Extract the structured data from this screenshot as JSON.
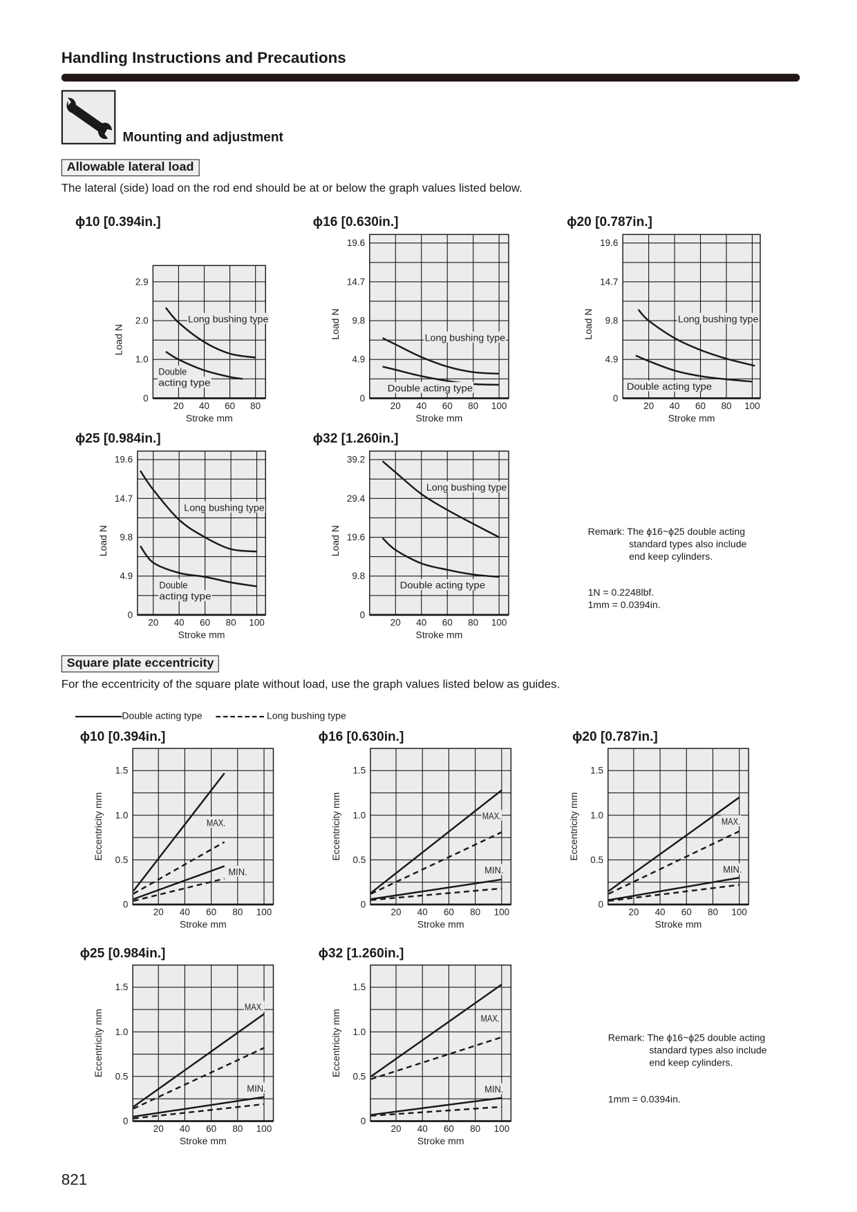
{
  "header": {
    "title": "Handling Instructions and Precautions"
  },
  "section": {
    "icon": "wrench-icon",
    "title": "Mounting and adjustment"
  },
  "lateral": {
    "heading": "Allowable lateral load",
    "description": "The lateral (side) load on the rod end should be at or below the graph values listed below.",
    "remark": [
      "Remark: The ϕ16~ϕ25 double acting",
      "standard types also include",
      "end keep cylinders."
    ],
    "conversions": [
      "1N = 0.2248lbf.",
      "1mm = 0.0394in."
    ]
  },
  "eccentricity": {
    "heading": "Square plate eccentricity",
    "description": "For the eccentricity of the square plate without load, use the graph values listed below as guides.",
    "legend": [
      {
        "label": "Double acting type",
        "style": "solid"
      },
      {
        "label": "Long bushing type",
        "style": "dashed"
      }
    ],
    "remark": [
      "Remark: The ϕ16~ϕ25 double acting",
      "standard types also include",
      "end keep cylinders."
    ],
    "conversions": [
      "1mm = 0.0394in."
    ]
  },
  "page_number": "821",
  "colors": {
    "plot_background": "#ececec",
    "line": "#1a1a1a",
    "header_bar": "#231815"
  },
  "chart_data": [
    {
      "type": "line",
      "title": "ϕ10 [0.394in.]",
      "xlabel": "Stroke  mm",
      "ylabel": "Load  N",
      "xticks": [
        20,
        40,
        60,
        80
      ],
      "yticks": [
        "0",
        "1.0",
        "2.0",
        "2.9"
      ],
      "grid": true,
      "series": [
        {
          "name": "Long bushing type",
          "style": "solid",
          "x": [
            10,
            20,
            40,
            60,
            80
          ],
          "y": [
            2.3,
            1.95,
            1.45,
            1.15,
            1.05
          ]
        },
        {
          "name": "Double acting type",
          "style": "solid",
          "x": [
            10,
            20,
            40,
            60,
            70
          ],
          "y": [
            1.2,
            1.0,
            0.72,
            0.55,
            0.5
          ]
        }
      ],
      "annotations": [
        "Long bushing type",
        "Double",
        "acting type"
      ]
    },
    {
      "type": "line",
      "title": "ϕ16 [0.630in.]",
      "xlabel": "Stroke  mm",
      "ylabel": "Load  N",
      "xticks": [
        20,
        40,
        60,
        80,
        100
      ],
      "yticks": [
        "0",
        "4.9",
        "9.8",
        "14.7",
        "19.6"
      ],
      "grid": true,
      "series": [
        {
          "name": "Long bushing type",
          "style": "solid",
          "x": [
            10,
            20,
            40,
            60,
            80,
            100
          ],
          "y": [
            7.6,
            6.8,
            5.2,
            4.0,
            3.3,
            3.1
          ]
        },
        {
          "name": "Double acting type",
          "style": "solid",
          "x": [
            10,
            20,
            40,
            60,
            80,
            100
          ],
          "y": [
            4.0,
            3.6,
            2.8,
            2.2,
            1.8,
            1.7
          ]
        }
      ],
      "annotations": [
        "Long bushing type",
        "Double acting type"
      ]
    },
    {
      "type": "line",
      "title": "ϕ20 [0.787in.]",
      "xlabel": "Stroke  mm",
      "ylabel": "Load  N",
      "xticks": [
        20,
        40,
        60,
        80,
        100
      ],
      "yticks": [
        "0",
        "4.9",
        "9.8",
        "14.7",
        "19.6"
      ],
      "grid": true,
      "series": [
        {
          "name": "Long bushing type",
          "style": "solid",
          "x": [
            12,
            20,
            40,
            60,
            80,
            102
          ],
          "y": [
            11.2,
            9.8,
            7.6,
            6.1,
            5.0,
            4.1
          ]
        },
        {
          "name": "Double acting type",
          "style": "solid",
          "x": [
            10,
            20,
            40,
            60,
            80,
            100
          ],
          "y": [
            5.4,
            4.7,
            3.5,
            2.8,
            2.4,
            2.1
          ]
        }
      ],
      "annotations": [
        "Long bushing type",
        "Double acting type"
      ]
    },
    {
      "type": "line",
      "title": "ϕ25 [0.984in.]",
      "xlabel": "Stroke  mm",
      "ylabel": "Load  N",
      "xticks": [
        20,
        40,
        60,
        80,
        100
      ],
      "yticks": [
        "0",
        "4.9",
        "9.8",
        "14.7",
        "19.6"
      ],
      "grid": true,
      "series": [
        {
          "name": "Long bushing type",
          "style": "solid",
          "x": [
            10,
            20,
            40,
            60,
            80,
            100
          ],
          "y": [
            18.2,
            15.8,
            12.0,
            9.8,
            8.3,
            8.0
          ]
        },
        {
          "name": "Double acting type",
          "style": "solid",
          "x": [
            10,
            20,
            40,
            60,
            80,
            100
          ],
          "y": [
            8.7,
            6.6,
            5.3,
            4.8,
            4.1,
            3.6
          ]
        }
      ],
      "annotations": [
        "Long bushing type",
        "Double",
        "acting type"
      ]
    },
    {
      "type": "line",
      "title": "ϕ32 [1.260in.]",
      "xlabel": "Stroke  mm",
      "ylabel": "Load  N",
      "xticks": [
        20,
        40,
        60,
        80,
        100
      ],
      "yticks": [
        "0",
        "9.8",
        "19.6",
        "29.4",
        "39.2"
      ],
      "grid": true,
      "series": [
        {
          "name": "Long bushing type",
          "style": "solid",
          "x": [
            10,
            20,
            40,
            60,
            80,
            100
          ],
          "y": [
            38.8,
            36,
            30.5,
            26.5,
            23,
            19.6
          ]
        },
        {
          "name": "Double acting type",
          "style": "solid",
          "x": [
            10,
            20,
            40,
            60,
            80,
            100
          ],
          "y": [
            19.4,
            16.4,
            13,
            11.4,
            10.2,
            9.6
          ]
        }
      ],
      "annotations": [
        "Long bushing type",
        "Double acting type"
      ]
    },
    {
      "type": "line",
      "title": "ϕ10 [0.394in.]",
      "xlabel": "Stroke  mm",
      "ylabel": "Eccentricity  mm",
      "xticks": [
        20,
        40,
        60,
        80,
        100
      ],
      "yticks": [
        "0",
        "0.5",
        "1.0",
        "1.5"
      ],
      "grid": true,
      "series": [
        {
          "style": "solid",
          "x": [
            1,
            70
          ],
          "y": [
            0.15,
            1.47
          ]
        },
        {
          "style": "dashed",
          "x": [
            1,
            70
          ],
          "y": [
            0.12,
            0.7
          ]
        },
        {
          "style": "solid",
          "x": [
            1,
            70
          ],
          "y": [
            0.06,
            0.43
          ]
        },
        {
          "style": "dashed",
          "x": [
            1,
            70
          ],
          "y": [
            0.04,
            0.29
          ]
        }
      ],
      "annotations": [
        "MAX.",
        "MIN."
      ]
    },
    {
      "type": "line",
      "title": "ϕ16 [0.630in.]",
      "xlabel": "Stroke  mm",
      "ylabel": "Eccentricity  mm",
      "xticks": [
        20,
        40,
        60,
        80,
        100
      ],
      "yticks": [
        "0",
        "0.5",
        "1.0",
        "1.5"
      ],
      "grid": true,
      "series": [
        {
          "style": "solid",
          "x": [
            1,
            100
          ],
          "y": [
            0.13,
            1.28
          ]
        },
        {
          "style": "dashed",
          "x": [
            1,
            100
          ],
          "y": [
            0.12,
            0.81
          ]
        },
        {
          "style": "solid",
          "x": [
            1,
            100
          ],
          "y": [
            0.06,
            0.28
          ]
        },
        {
          "style": "dashed",
          "x": [
            1,
            100
          ],
          "y": [
            0.05,
            0.18
          ]
        }
      ],
      "annotations": [
        "MAX.",
        "MIN."
      ]
    },
    {
      "type": "line",
      "title": "ϕ20 [0.787in.]",
      "xlabel": "Stroke  mm",
      "ylabel": "Eccentricity  mm",
      "xticks": [
        20,
        40,
        60,
        80,
        100
      ],
      "yticks": [
        "0",
        "0.5",
        "1.0",
        "1.5"
      ],
      "grid": true,
      "series": [
        {
          "style": "solid",
          "x": [
            1,
            100
          ],
          "y": [
            0.15,
            1.2
          ]
        },
        {
          "style": "dashed",
          "x": [
            1,
            100
          ],
          "y": [
            0.12,
            0.82
          ]
        },
        {
          "style": "solid",
          "x": [
            1,
            100
          ],
          "y": [
            0.05,
            0.3
          ]
        },
        {
          "style": "dashed",
          "x": [
            1,
            100
          ],
          "y": [
            0.04,
            0.22
          ]
        }
      ],
      "annotations": [
        "MAX.",
        "MIN."
      ]
    },
    {
      "type": "line",
      "title": "ϕ25 [0.984in.]",
      "xlabel": "Stroke  mm",
      "ylabel": "Eccentricity  mm",
      "xticks": [
        20,
        40,
        60,
        80,
        100
      ],
      "yticks": [
        "0",
        "0.5",
        "1.0",
        "1.5"
      ],
      "grid": true,
      "series": [
        {
          "style": "solid",
          "x": [
            1,
            100
          ],
          "y": [
            0.16,
            1.2
          ]
        },
        {
          "style": "dashed",
          "x": [
            1,
            100
          ],
          "y": [
            0.14,
            0.82
          ]
        },
        {
          "style": "solid",
          "x": [
            1,
            100
          ],
          "y": [
            0.05,
            0.27
          ]
        },
        {
          "style": "dashed",
          "x": [
            1,
            100
          ],
          "y": [
            0.03,
            0.19
          ]
        }
      ],
      "annotations": [
        "MAX.",
        "MIN."
      ]
    },
    {
      "type": "line",
      "title": "ϕ32 [1.260in.]",
      "xlabel": "Stroke  mm",
      "ylabel": "Eccentricity  mm",
      "xticks": [
        20,
        40,
        60,
        80,
        100
      ],
      "yticks": [
        "0",
        "0.5",
        "1.0",
        "1.5"
      ],
      "grid": true,
      "series": [
        {
          "style": "solid",
          "x": [
            1,
            100
          ],
          "y": [
            0.5,
            1.53
          ]
        },
        {
          "style": "dashed",
          "x": [
            1,
            100
          ],
          "y": [
            0.47,
            0.94
          ]
        },
        {
          "style": "solid",
          "x": [
            1,
            100
          ],
          "y": [
            0.07,
            0.26
          ]
        },
        {
          "style": "dashed",
          "x": [
            1,
            100
          ],
          "y": [
            0.06,
            0.16
          ]
        }
      ],
      "annotations": [
        "MAX.",
        "MIN."
      ]
    }
  ]
}
